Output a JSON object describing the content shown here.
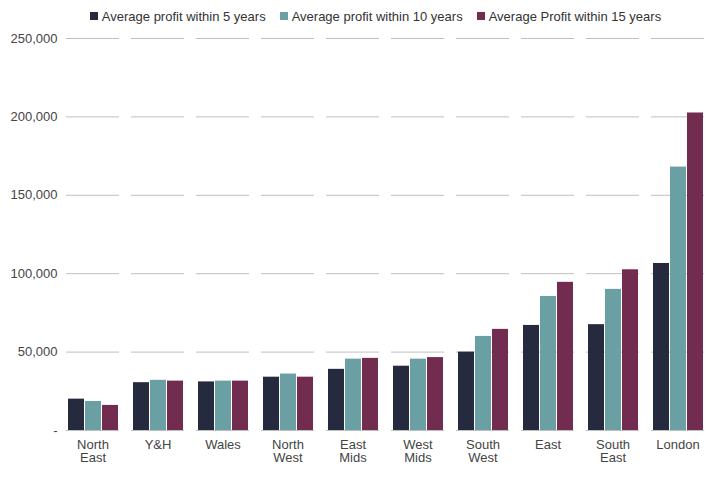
{
  "chart_data": {
    "type": "bar",
    "categories": [
      "North East",
      "Y&H",
      "Wales",
      "North West",
      "East Mids",
      "West Mids",
      "South West",
      "East",
      "South East",
      "London"
    ],
    "series": [
      {
        "name": "Average profit within 5 years",
        "color": "#262a3f",
        "values": [
          20000,
          30500,
          31000,
          34000,
          39000,
          41000,
          50000,
          67000,
          67500,
          106500
        ]
      },
      {
        "name": "Average profit within 10 years",
        "color": "#6a9fa3",
        "values": [
          18500,
          32000,
          31500,
          36000,
          45500,
          45500,
          60000,
          85500,
          90000,
          168000
        ]
      },
      {
        "name": "Average Profit within 15 years",
        "color": "#722c4f",
        "values": [
          16000,
          31500,
          31500,
          34000,
          46000,
          46500,
          64500,
          94500,
          102500,
          202500
        ]
      }
    ],
    "ylim": [
      0,
      250000
    ],
    "yticks": [
      {
        "value": 0,
        "label": "-"
      },
      {
        "value": 50000,
        "label": "50,000"
      },
      {
        "value": 100000,
        "label": "100,000"
      },
      {
        "value": 150000,
        "label": "150,000"
      },
      {
        "value": 200000,
        "label": "200,000"
      },
      {
        "value": 250000,
        "label": "250,000"
      }
    ],
    "grid": true,
    "legend": "top"
  }
}
